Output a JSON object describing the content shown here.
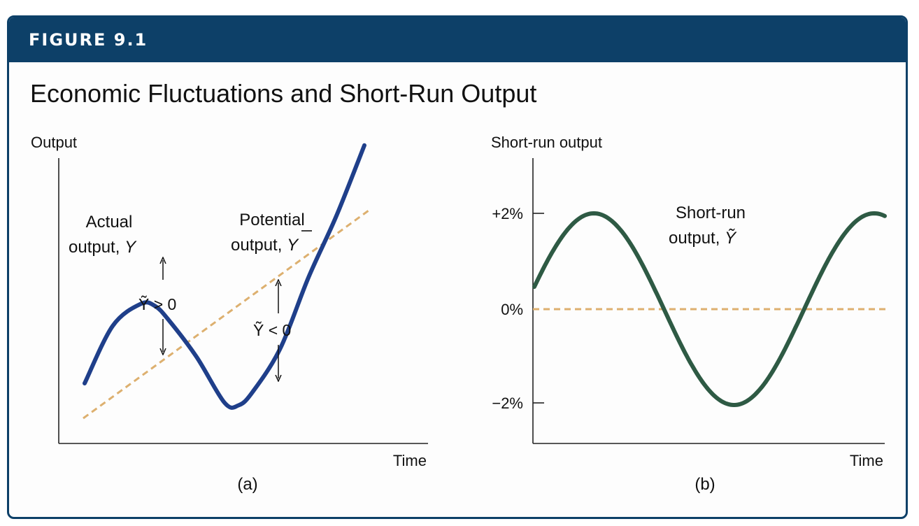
{
  "figure": {
    "label": "FIGURE 9.1",
    "title": "Economic Fluctuations and Short-Run Output"
  },
  "colors": {
    "header_bg": "#0d4068",
    "actual_output_line": "#1f3f8a",
    "potential_output_line": "#ddb06f",
    "short_run_output_line": "#2e5a44",
    "axis": "#222222"
  },
  "chart_data": [
    {
      "type": "line",
      "panel": "(a)",
      "ylabel": "Output",
      "xlabel": "Time",
      "series": [
        {
          "name": "Actual output, Y",
          "style": "solid",
          "x": [
            0.0,
            0.1,
            0.2,
            0.25,
            0.3,
            0.4,
            0.5,
            0.55,
            0.6,
            0.7,
            0.8,
            0.9,
            1.0
          ],
          "y": [
            -0.1,
            0.55,
            0.8,
            0.78,
            0.62,
            0.2,
            -0.32,
            -0.35,
            -0.2,
            0.3,
            1.1,
            1.8,
            2.6
          ]
        },
        {
          "name": "Potential output, Ȳ",
          "style": "dashed",
          "x": [
            0.0,
            1.0
          ],
          "y": [
            -0.3,
            1.9
          ]
        }
      ],
      "annotations": [
        {
          "text": "Ỹ > 0"
        },
        {
          "text": "Ỹ < 0"
        }
      ]
    },
    {
      "type": "line",
      "panel": "(b)",
      "ylabel": "Short-run output",
      "xlabel": "Time",
      "yticks": [
        "+2%",
        "0%",
        "−2%"
      ],
      "ylim": [
        -2.8,
        3.1
      ],
      "series": [
        {
          "name": "Short-run output, Ỹ",
          "style": "solid",
          "cycles": 1.25,
          "amplitude": 2,
          "phase_offset_fraction": 0.03
        },
        {
          "name": "0% line",
          "style": "dashed",
          "value": 0
        }
      ]
    }
  ],
  "panel_a": {
    "y_axis_label": "Output",
    "x_axis_label": "Time",
    "panel_label": "(a)",
    "actual_label_line1": "Actual",
    "actual_label_line2_prefix": "output, ",
    "actual_label_symbol": "Y",
    "potential_label_line1": "Potential",
    "potential_label_line2_prefix": "output, ",
    "potential_label_symbol": "Y",
    "gap_positive_text": "Ỹ > 0",
    "gap_negative_text": "Ỹ < 0"
  },
  "panel_b": {
    "y_axis_label": "Short-run output",
    "x_axis_label": "Time",
    "panel_label": "(b)",
    "tick_plus2": "+2%",
    "tick_zero": "0%",
    "tick_minus2": "−2%",
    "curve_label_line1": "Short-run",
    "curve_label_line2_prefix": "output, ",
    "curve_label_symbol": "Ỹ"
  }
}
